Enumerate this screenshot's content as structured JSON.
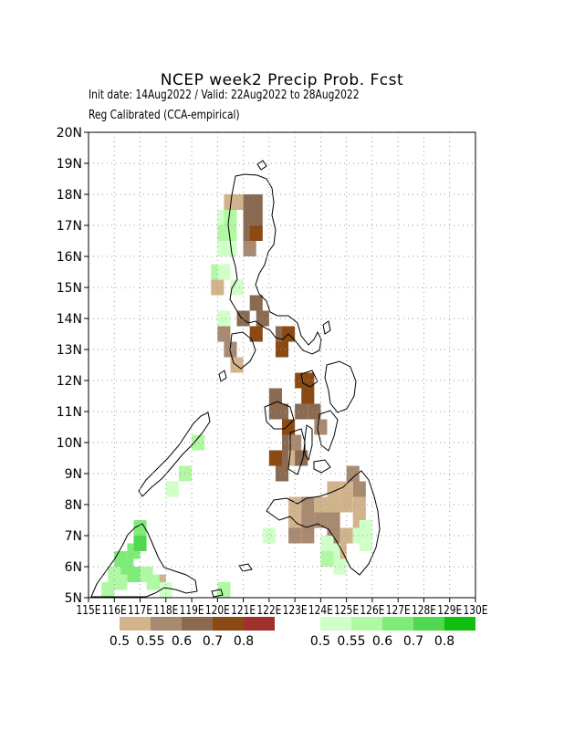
{
  "header": {
    "title": "NCEP week2 Precip Prob. Fcst",
    "line1": "Init date: 14Aug2022 / Valid: 22Aug2022 to 28Aug2022",
    "line2": "Reg Calibrated (CCA-empirical)"
  },
  "chart_data": {
    "type": "heatmap",
    "xlim": [
      115,
      130
    ],
    "ylim": [
      5,
      20
    ],
    "grid": true,
    "y_ticks": [
      5,
      6,
      7,
      8,
      9,
      10,
      11,
      12,
      13,
      14,
      15,
      16,
      17,
      18,
      19,
      20
    ],
    "y_tick_labels": [
      "5N",
      "6N",
      "7N",
      "8N",
      "9N",
      "10N",
      "11N",
      "12N",
      "13N",
      "14N",
      "15N",
      "16N",
      "17N",
      "18N",
      "19N",
      "20N"
    ],
    "x_ticks": [
      115,
      116,
      117,
      118,
      119,
      120,
      121,
      122,
      123,
      124,
      125,
      126,
      127,
      128,
      129,
      130
    ],
    "x_tick_labels": [
      "115E",
      "116E",
      "117E",
      "118E",
      "119E",
      "120E",
      "121E",
      "122E",
      "123E",
      "124E",
      "125E",
      "126E",
      "127E",
      "128E",
      "129E",
      "130E"
    ],
    "legend_dry": {
      "labels": [
        "0.5",
        "0.55",
        "0.6",
        "0.7",
        "0.8"
      ],
      "colors": [
        "#d2b48c",
        "#a88a70",
        "#8a6a50",
        "#8b4a14",
        "#a0302c"
      ]
    },
    "legend_wet": {
      "labels": [
        "0.5",
        "0.55",
        "0.6",
        "0.7",
        "0.8"
      ],
      "colors": [
        "#d0ffc8",
        "#b0f8a4",
        "#80ec78",
        "#50d850",
        "#10c010"
      ]
    },
    "dry_cells": [
      {
        "lon": 120.5,
        "lat": 17.75,
        "cat": 0
      },
      {
        "lon": 120.75,
        "lat": 17.75,
        "cat": 0
      },
      {
        "lon": 121.25,
        "lat": 17.75,
        "cat": 2
      },
      {
        "lon": 121.5,
        "lat": 17.75,
        "cat": 2
      },
      {
        "lon": 121.25,
        "lat": 17.25,
        "cat": 2
      },
      {
        "lon": 121.5,
        "lat": 17.25,
        "cat": 2
      },
      {
        "lon": 121.25,
        "lat": 16.75,
        "cat": 2
      },
      {
        "lon": 121.5,
        "lat": 16.75,
        "cat": 3
      },
      {
        "lon": 121.25,
        "lat": 16.25,
        "cat": 1
      },
      {
        "lon": 120.0,
        "lat": 15.0,
        "cat": 0
      },
      {
        "lon": 121.5,
        "lat": 14.5,
        "cat": 2
      },
      {
        "lon": 121.0,
        "lat": 14.0,
        "cat": 2
      },
      {
        "lon": 121.75,
        "lat": 14.0,
        "cat": 2
      },
      {
        "lon": 120.25,
        "lat": 13.5,
        "cat": 1
      },
      {
        "lon": 121.5,
        "lat": 13.5,
        "cat": 3
      },
      {
        "lon": 122.5,
        "lat": 13.5,
        "cat": 2
      },
      {
        "lon": 122.75,
        "lat": 13.5,
        "cat": 3
      },
      {
        "lon": 120.5,
        "lat": 13.0,
        "cat": 1
      },
      {
        "lon": 122.5,
        "lat": 13.0,
        "cat": 3
      },
      {
        "lon": 120.75,
        "lat": 12.5,
        "cat": 0
      },
      {
        "lon": 123.25,
        "lat": 12.0,
        "cat": 3
      },
      {
        "lon": 123.5,
        "lat": 12.0,
        "cat": 3
      },
      {
        "lon": 122.25,
        "lat": 11.5,
        "cat": 2
      },
      {
        "lon": 123.5,
        "lat": 11.5,
        "cat": 3
      },
      {
        "lon": 122.25,
        "lat": 11.0,
        "cat": 2
      },
      {
        "lon": 122.5,
        "lat": 11.0,
        "cat": 2
      },
      {
        "lon": 123.25,
        "lat": 11.0,
        "cat": 2
      },
      {
        "lon": 123.75,
        "lat": 11.0,
        "cat": 2
      },
      {
        "lon": 122.75,
        "lat": 10.5,
        "cat": 3
      },
      {
        "lon": 124.0,
        "lat": 10.5,
        "cat": 1
      },
      {
        "lon": 122.75,
        "lat": 10.0,
        "cat": 2
      },
      {
        "lon": 123.0,
        "lat": 10.0,
        "cat": 1
      },
      {
        "lon": 122.25,
        "lat": 9.5,
        "cat": 3
      },
      {
        "lon": 122.75,
        "lat": 9.5,
        "cat": 2
      },
      {
        "lon": 123.0,
        "lat": 9.5,
        "cat": 0
      },
      {
        "lon": 123.25,
        "lat": 9.5,
        "cat": 2
      },
      {
        "lon": 122.5,
        "lat": 9.0,
        "cat": 2
      },
      {
        "lon": 125.25,
        "lat": 9.0,
        "cat": 1
      },
      {
        "lon": 124.5,
        "lat": 8.5,
        "cat": 0
      },
      {
        "lon": 125.0,
        "lat": 8.5,
        "cat": 0
      },
      {
        "lon": 125.5,
        "lat": 8.5,
        "cat": 1
      },
      {
        "lon": 123.0,
        "lat": 8.0,
        "cat": 0
      },
      {
        "lon": 123.5,
        "lat": 8.0,
        "cat": 1
      },
      {
        "lon": 124.0,
        "lat": 8.0,
        "cat": 0
      },
      {
        "lon": 124.5,
        "lat": 8.0,
        "cat": 0
      },
      {
        "lon": 125.0,
        "lat": 8.0,
        "cat": 0
      },
      {
        "lon": 125.5,
        "lat": 8.0,
        "cat": 0
      },
      {
        "lon": 123.0,
        "lat": 7.5,
        "cat": 0
      },
      {
        "lon": 123.5,
        "lat": 7.5,
        "cat": 1
      },
      {
        "lon": 124.0,
        "lat": 7.5,
        "cat": 1
      },
      {
        "lon": 124.5,
        "lat": 7.5,
        "cat": 1
      },
      {
        "lon": 125.5,
        "lat": 7.5,
        "cat": 0
      },
      {
        "lon": 123.0,
        "lat": 7.0,
        "cat": 1
      },
      {
        "lon": 123.5,
        "lat": 7.0,
        "cat": 1
      },
      {
        "lon": 124.5,
        "lat": 7.0,
        "cat": 1
      },
      {
        "lon": 125.0,
        "lat": 7.0,
        "cat": 0
      },
      {
        "lon": 124.75,
        "lat": 6.5,
        "cat": 0
      },
      {
        "lon": 117.75,
        "lat": 5.5,
        "cat": 0
      }
    ],
    "wet_cells": [
      {
        "lon": 120.25,
        "lat": 17.25,
        "cat": 0
      },
      {
        "lon": 120.5,
        "lat": 17.25,
        "cat": 1
      },
      {
        "lon": 120.25,
        "lat": 16.75,
        "cat": 1
      },
      {
        "lon": 120.5,
        "lat": 16.75,
        "cat": 1
      },
      {
        "lon": 120.25,
        "lat": 16.25,
        "cat": 0
      },
      {
        "lon": 120.5,
        "lat": 16.25,
        "cat": 0
      },
      {
        "lon": 120.0,
        "lat": 15.5,
        "cat": 1
      },
      {
        "lon": 120.25,
        "lat": 15.5,
        "cat": 0
      },
      {
        "lon": 120.75,
        "lat": 15.0,
        "cat": 0
      },
      {
        "lon": 120.25,
        "lat": 14.0,
        "cat": 0
      },
      {
        "lon": 124.25,
        "lat": 6.75,
        "cat": 0
      },
      {
        "lon": 124.5,
        "lat": 6.5,
        "cat": 0
      },
      {
        "lon": 124.75,
        "lat": 6.0,
        "cat": 0
      },
      {
        "lon": 124.25,
        "lat": 6.25,
        "cat": 1
      },
      {
        "lon": 125.75,
        "lat": 7.25,
        "cat": 0
      },
      {
        "lon": 125.75,
        "lat": 6.75,
        "cat": 0
      },
      {
        "lon": 125.5,
        "lat": 7.0,
        "cat": 0
      },
      {
        "lon": 122.0,
        "lat": 7.0,
        "cat": 0
      },
      {
        "lon": 119.25,
        "lat": 10.0,
        "cat": 1
      },
      {
        "lon": 118.75,
        "lat": 9.0,
        "cat": 1
      },
      {
        "lon": 118.25,
        "lat": 8.5,
        "cat": 0
      },
      {
        "lon": 116.25,
        "lat": 6.25,
        "cat": 2
      },
      {
        "lon": 116.5,
        "lat": 6.0,
        "cat": 2
      },
      {
        "lon": 116.75,
        "lat": 6.5,
        "cat": 2
      },
      {
        "lon": 117.0,
        "lat": 6.75,
        "cat": 3
      },
      {
        "lon": 117.0,
        "lat": 7.25,
        "cat": 2
      },
      {
        "lon": 116.25,
        "lat": 5.5,
        "cat": 1
      },
      {
        "lon": 116.75,
        "lat": 5.75,
        "cat": 2
      },
      {
        "lon": 117.25,
        "lat": 5.75,
        "cat": 1
      },
      {
        "lon": 117.5,
        "lat": 5.5,
        "cat": 1
      },
      {
        "lon": 118.0,
        "lat": 5.25,
        "cat": 0
      },
      {
        "lon": 115.75,
        "lat": 5.25,
        "cat": 1
      },
      {
        "lon": 116.0,
        "lat": 5.75,
        "cat": 1
      },
      {
        "lon": 120.25,
        "lat": 5.25,
        "cat": 1
      }
    ]
  }
}
